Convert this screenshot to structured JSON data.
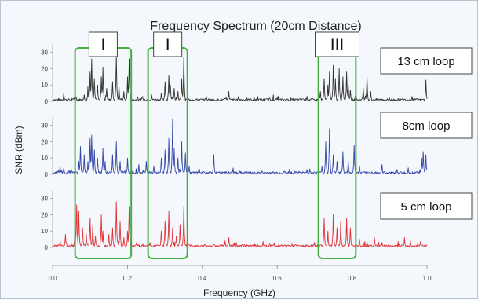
{
  "chart_data": {
    "type": "line",
    "title": "Frequency Spectrum (20cm Distance)",
    "xlabel": "Frequency (GHz)",
    "ylabel": "SNR (dBm)",
    "xlim": [
      0.0,
      1.0
    ],
    "xticks": [
      "0.0",
      "0.2",
      "0.4",
      "0.6",
      "0.8",
      "1.0"
    ],
    "ylim": [
      0,
      35
    ],
    "yticks": [
      "0",
      "10",
      "20",
      "30"
    ],
    "grid": false,
    "series": [
      {
        "name": "13 cm loop",
        "color": "#333333",
        "peaks": [
          {
            "x": 0.03,
            "y": 5
          },
          {
            "x": 0.05,
            "y": 2
          },
          {
            "x": 0.085,
            "y": 4
          },
          {
            "x": 0.095,
            "y": 9
          },
          {
            "x": 0.1,
            "y": 18
          },
          {
            "x": 0.105,
            "y": 26
          },
          {
            "x": 0.112,
            "y": 14
          },
          {
            "x": 0.12,
            "y": 10
          },
          {
            "x": 0.13,
            "y": 15
          },
          {
            "x": 0.135,
            "y": 21
          },
          {
            "x": 0.145,
            "y": 8
          },
          {
            "x": 0.16,
            "y": 12
          },
          {
            "x": 0.17,
            "y": 28
          },
          {
            "x": 0.178,
            "y": 9
          },
          {
            "x": 0.19,
            "y": 6
          },
          {
            "x": 0.2,
            "y": 15
          },
          {
            "x": 0.205,
            "y": 26
          },
          {
            "x": 0.24,
            "y": 3
          },
          {
            "x": 0.265,
            "y": 4
          },
          {
            "x": 0.29,
            "y": 5
          },
          {
            "x": 0.3,
            "y": 12
          },
          {
            "x": 0.31,
            "y": 16
          },
          {
            "x": 0.315,
            "y": 10
          },
          {
            "x": 0.325,
            "y": 8
          },
          {
            "x": 0.335,
            "y": 6
          },
          {
            "x": 0.345,
            "y": 14
          },
          {
            "x": 0.35,
            "y": 27
          },
          {
            "x": 0.36,
            "y": 5
          },
          {
            "x": 0.41,
            "y": 3
          },
          {
            "x": 0.47,
            "y": 6
          },
          {
            "x": 0.52,
            "y": 2
          },
          {
            "x": 0.6,
            "y": 2
          },
          {
            "x": 0.68,
            "y": 3
          },
          {
            "x": 0.715,
            "y": 6
          },
          {
            "x": 0.725,
            "y": 14
          },
          {
            "x": 0.735,
            "y": 10
          },
          {
            "x": 0.74,
            "y": 18
          },
          {
            "x": 0.75,
            "y": 22
          },
          {
            "x": 0.755,
            "y": 14
          },
          {
            "x": 0.765,
            "y": 20
          },
          {
            "x": 0.775,
            "y": 15
          },
          {
            "x": 0.785,
            "y": 18
          },
          {
            "x": 0.79,
            "y": 10
          },
          {
            "x": 0.795,
            "y": 7
          },
          {
            "x": 0.83,
            "y": 8
          },
          {
            "x": 0.84,
            "y": 15
          },
          {
            "x": 0.85,
            "y": 6
          },
          {
            "x": 0.9,
            "y": 2
          },
          {
            "x": 0.96,
            "y": 3
          },
          {
            "x": 0.997,
            "y": 13
          }
        ]
      },
      {
        "name": "8cm loop",
        "color": "#3547a8",
        "peaks": [
          {
            "x": 0.02,
            "y": 5
          },
          {
            "x": 0.03,
            "y": 4
          },
          {
            "x": 0.05,
            "y": 3
          },
          {
            "x": 0.07,
            "y": 8
          },
          {
            "x": 0.075,
            "y": 17
          },
          {
            "x": 0.085,
            "y": 12
          },
          {
            "x": 0.095,
            "y": 8
          },
          {
            "x": 0.1,
            "y": 22
          },
          {
            "x": 0.105,
            "y": 24
          },
          {
            "x": 0.112,
            "y": 15
          },
          {
            "x": 0.12,
            "y": 10
          },
          {
            "x": 0.135,
            "y": 16
          },
          {
            "x": 0.14,
            "y": 8
          },
          {
            "x": 0.16,
            "y": 12
          },
          {
            "x": 0.17,
            "y": 20
          },
          {
            "x": 0.18,
            "y": 8
          },
          {
            "x": 0.2,
            "y": 10
          },
          {
            "x": 0.21,
            "y": 4
          },
          {
            "x": 0.23,
            "y": 6
          },
          {
            "x": 0.25,
            "y": 8
          },
          {
            "x": 0.27,
            "y": 5
          },
          {
            "x": 0.29,
            "y": 10
          },
          {
            "x": 0.3,
            "y": 15
          },
          {
            "x": 0.31,
            "y": 22
          },
          {
            "x": 0.32,
            "y": 34
          },
          {
            "x": 0.325,
            "y": 16
          },
          {
            "x": 0.335,
            "y": 10
          },
          {
            "x": 0.345,
            "y": 20
          },
          {
            "x": 0.355,
            "y": 13
          },
          {
            "x": 0.365,
            "y": 5
          },
          {
            "x": 0.39,
            "y": 3
          },
          {
            "x": 0.43,
            "y": 12
          },
          {
            "x": 0.5,
            "y": 2
          },
          {
            "x": 0.56,
            "y": 2
          },
          {
            "x": 0.62,
            "y": 2
          },
          {
            "x": 0.68,
            "y": 3
          },
          {
            "x": 0.72,
            "y": 5
          },
          {
            "x": 0.73,
            "y": 20
          },
          {
            "x": 0.74,
            "y": 28
          },
          {
            "x": 0.75,
            "y": 12
          },
          {
            "x": 0.76,
            "y": 8
          },
          {
            "x": 0.775,
            "y": 14
          },
          {
            "x": 0.79,
            "y": 8
          },
          {
            "x": 0.805,
            "y": 18
          },
          {
            "x": 0.82,
            "y": 5
          },
          {
            "x": 0.88,
            "y": 6
          },
          {
            "x": 0.92,
            "y": 3
          },
          {
            "x": 0.95,
            "y": 4
          },
          {
            "x": 0.985,
            "y": 10
          },
          {
            "x": 0.99,
            "y": 14
          },
          {
            "x": 0.997,
            "y": 12
          }
        ]
      },
      {
        "name": "5 cm loop",
        "color": "#e2323a",
        "peaks": [
          {
            "x": 0.02,
            "y": 4
          },
          {
            "x": 0.035,
            "y": 8
          },
          {
            "x": 0.05,
            "y": 2
          },
          {
            "x": 0.06,
            "y": 15
          },
          {
            "x": 0.065,
            "y": 26
          },
          {
            "x": 0.07,
            "y": 22
          },
          {
            "x": 0.08,
            "y": 12
          },
          {
            "x": 0.09,
            "y": 8
          },
          {
            "x": 0.1,
            "y": 18
          },
          {
            "x": 0.108,
            "y": 14
          },
          {
            "x": 0.115,
            "y": 7
          },
          {
            "x": 0.13,
            "y": 20
          },
          {
            "x": 0.135,
            "y": 10
          },
          {
            "x": 0.15,
            "y": 8
          },
          {
            "x": 0.16,
            "y": 12
          },
          {
            "x": 0.17,
            "y": 28
          },
          {
            "x": 0.18,
            "y": 16
          },
          {
            "x": 0.19,
            "y": 6
          },
          {
            "x": 0.2,
            "y": 10
          },
          {
            "x": 0.205,
            "y": 25
          },
          {
            "x": 0.225,
            "y": 3
          },
          {
            "x": 0.26,
            "y": 3
          },
          {
            "x": 0.29,
            "y": 10
          },
          {
            "x": 0.3,
            "y": 16
          },
          {
            "x": 0.31,
            "y": 22
          },
          {
            "x": 0.32,
            "y": 12
          },
          {
            "x": 0.33,
            "y": 7
          },
          {
            "x": 0.34,
            "y": 14
          },
          {
            "x": 0.35,
            "y": 25
          },
          {
            "x": 0.36,
            "y": 6
          },
          {
            "x": 0.46,
            "y": 4
          },
          {
            "x": 0.47,
            "y": 6
          },
          {
            "x": 0.49,
            "y": 3
          },
          {
            "x": 0.54,
            "y": 2
          },
          {
            "x": 0.58,
            "y": 2
          },
          {
            "x": 0.64,
            "y": 2
          },
          {
            "x": 0.7,
            "y": 3
          },
          {
            "x": 0.725,
            "y": 18
          },
          {
            "x": 0.735,
            "y": 10
          },
          {
            "x": 0.75,
            "y": 20
          },
          {
            "x": 0.76,
            "y": 12
          },
          {
            "x": 0.77,
            "y": 16
          },
          {
            "x": 0.785,
            "y": 18
          },
          {
            "x": 0.795,
            "y": 12
          },
          {
            "x": 0.82,
            "y": 5
          },
          {
            "x": 0.86,
            "y": 6
          },
          {
            "x": 0.88,
            "y": 3
          },
          {
            "x": 0.94,
            "y": 6
          },
          {
            "x": 0.955,
            "y": 4
          },
          {
            "x": 0.975,
            "y": 3
          }
        ]
      }
    ],
    "bands": [
      {
        "label": "I",
        "x_range": [
          0.06,
          0.21
        ]
      },
      {
        "label": "I",
        "x_range": [
          0.255,
          0.36
        ]
      },
      {
        "label": "III",
        "x_range": [
          0.71,
          0.81
        ]
      }
    ],
    "band_color": "#40b040"
  }
}
